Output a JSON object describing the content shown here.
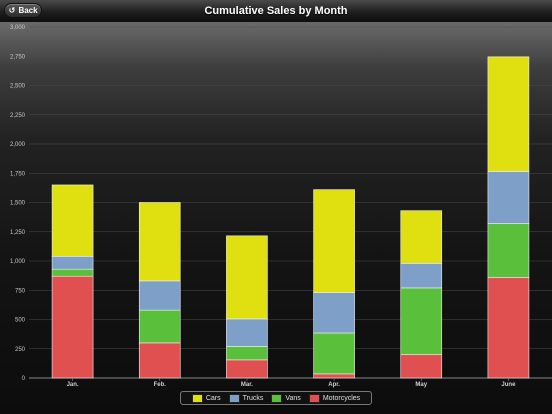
{
  "navbar": {
    "title": "Cumulative Sales by Month",
    "back_label": "Back",
    "back_icon": "back-arrow-icon"
  },
  "chart_data": {
    "type": "bar",
    "stacked": true,
    "title": "Cumulative Sales by Month",
    "xlabel": "",
    "ylabel": "",
    "categories": [
      "Jan.",
      "Feb.",
      "Mar.",
      "Apr.",
      "May",
      "June"
    ],
    "ylim": [
      0,
      3000
    ],
    "yticks": [
      0,
      250,
      500,
      750,
      1000,
      1250,
      1500,
      1750,
      2000,
      2250,
      2500,
      2750,
      3000
    ],
    "ytick_labels": [
      "0",
      "250",
      "500",
      "750",
      "1,000",
      "1,250",
      "1,500",
      "1,750",
      "2,000",
      "2,250",
      "2,500",
      "2,750",
      "3,000"
    ],
    "grid": true,
    "legend_position": "bottom-center",
    "series": [
      {
        "name": "Motorcycles",
        "color": "#e05050",
        "values": [
          870,
          300,
          155,
          35,
          200,
          860
        ]
      },
      {
        "name": "Vans",
        "color": "#5ac03c",
        "values": [
          60,
          280,
          115,
          350,
          570,
          460
        ]
      },
      {
        "name": "Trucks",
        "color": "#7ea0c8",
        "values": [
          110,
          250,
          235,
          345,
          210,
          445
        ]
      },
      {
        "name": "Cars",
        "color": "#e0e010",
        "values": [
          610,
          670,
          710,
          880,
          450,
          980
        ]
      }
    ],
    "legend_order": [
      "Cars",
      "Trucks",
      "Vans",
      "Motorcycles"
    ]
  }
}
